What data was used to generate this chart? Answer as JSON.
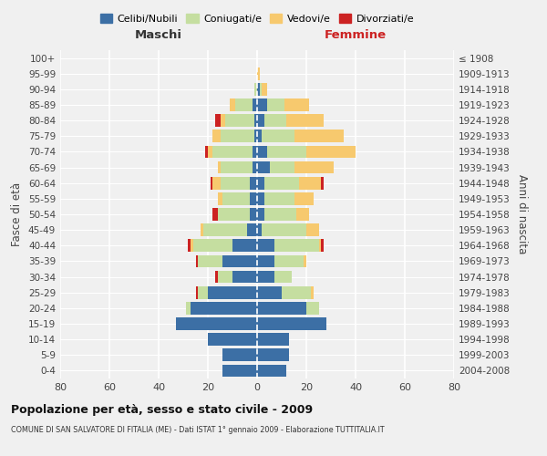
{
  "age_groups": [
    "0-4",
    "5-9",
    "10-14",
    "15-19",
    "20-24",
    "25-29",
    "30-34",
    "35-39",
    "40-44",
    "45-49",
    "50-54",
    "55-59",
    "60-64",
    "65-69",
    "70-74",
    "75-79",
    "80-84",
    "85-89",
    "90-94",
    "95-99",
    "100+"
  ],
  "birth_years": [
    "2004-2008",
    "1999-2003",
    "1994-1998",
    "1989-1993",
    "1984-1988",
    "1979-1983",
    "1974-1978",
    "1969-1973",
    "1964-1968",
    "1959-1963",
    "1954-1958",
    "1949-1953",
    "1944-1948",
    "1939-1943",
    "1934-1938",
    "1929-1933",
    "1924-1928",
    "1919-1923",
    "1914-1918",
    "1909-1913",
    "≤ 1908"
  ],
  "male": {
    "celibi": [
      14,
      14,
      20,
      33,
      27,
      20,
      10,
      14,
      10,
      4,
      3,
      3,
      3,
      2,
      2,
      1,
      1,
      2,
      0,
      0,
      0
    ],
    "coniugati": [
      0,
      0,
      0,
      0,
      2,
      4,
      6,
      10,
      16,
      18,
      13,
      11,
      12,
      13,
      16,
      14,
      12,
      7,
      1,
      0,
      0
    ],
    "vedovi": [
      0,
      0,
      0,
      0,
      0,
      0,
      0,
      0,
      1,
      1,
      0,
      2,
      3,
      1,
      2,
      3,
      2,
      2,
      0,
      0,
      0
    ],
    "divorziati": [
      0,
      0,
      0,
      0,
      0,
      1,
      1,
      1,
      1,
      0,
      2,
      0,
      1,
      0,
      1,
      0,
      2,
      0,
      0,
      0,
      0
    ]
  },
  "female": {
    "nubili": [
      12,
      13,
      13,
      28,
      20,
      10,
      7,
      7,
      7,
      2,
      3,
      3,
      3,
      5,
      4,
      2,
      3,
      4,
      1,
      0,
      0
    ],
    "coniugate": [
      0,
      0,
      0,
      0,
      5,
      12,
      7,
      12,
      18,
      18,
      13,
      12,
      14,
      10,
      16,
      13,
      9,
      7,
      1,
      0,
      0
    ],
    "vedove": [
      0,
      0,
      0,
      0,
      0,
      1,
      0,
      1,
      1,
      5,
      5,
      8,
      9,
      16,
      20,
      20,
      15,
      10,
      2,
      1,
      0
    ],
    "divorziate": [
      0,
      0,
      0,
      0,
      0,
      0,
      0,
      0,
      1,
      0,
      0,
      0,
      1,
      0,
      0,
      0,
      0,
      0,
      0,
      0,
      0
    ]
  },
  "colors": {
    "celibi": "#3c6fa5",
    "coniugati": "#c5dea0",
    "vedovi": "#f7c96e",
    "divorziati": "#cc2222"
  },
  "title": "Popolazione per età, sesso e stato civile - 2009",
  "subtitle": "COMUNE DI SAN SALVATORE DI FITALIA (ME) - Dati ISTAT 1° gennaio 2009 - Elaborazione TUTTITALIA.IT",
  "xlabel_left": "Maschi",
  "xlabel_right": "Femmine",
  "ylabel_left": "Fasce di età",
  "ylabel_right": "Anni di nascita",
  "xlim": 80,
  "background_color": "#f0f0f0",
  "legend_labels": [
    "Celibi/Nubili",
    "Coniugati/e",
    "Vedovi/e",
    "Divorziati/e"
  ]
}
